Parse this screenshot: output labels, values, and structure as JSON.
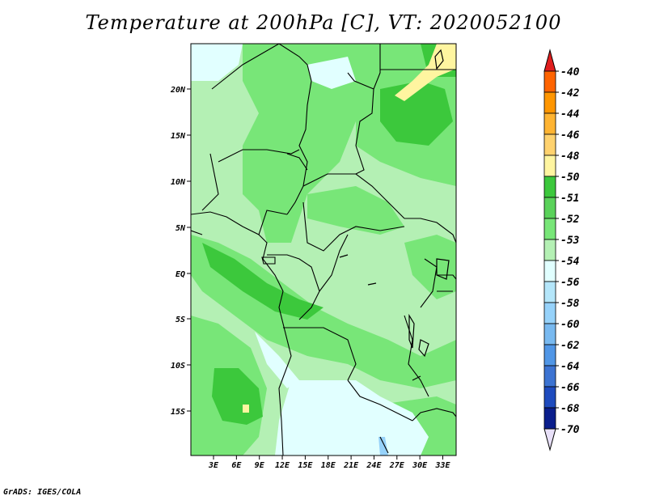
{
  "title": "Temperature at 200hPa [C], VT: 2020052100",
  "credit": "GrADS: IGES/COLA",
  "map": {
    "lat_labels": [
      "20N",
      "15N",
      "10N",
      "5N",
      "EQ",
      "5S",
      "10S",
      "15S"
    ],
    "lon_labels": [
      "3E",
      "6E",
      "9E",
      "12E",
      "15E",
      "18E",
      "21E",
      "24E",
      "27E",
      "30E",
      "33E"
    ]
  },
  "colorbar": {
    "top_arrow_color": "#e01e1e",
    "bottom_arrow_color": "#e8e0f8",
    "labels": [
      "-40",
      "-42",
      "-44",
      "-46",
      "-48",
      "-50",
      "-51",
      "-52",
      "-53",
      "-54",
      "-56",
      "-58",
      "-60",
      "-62",
      "-64",
      "-66",
      "-68",
      "-70"
    ],
    "colors": [
      "#ff3000",
      "#ff6400",
      "#ff9600",
      "#ffb432",
      "#ffd26e",
      "#fff5a0",
      "#3cc83c",
      "#5ad25a",
      "#78e678",
      "#b4f0b4",
      "#e1ffff",
      "#b4e6fa",
      "#96d2fa",
      "#78b9f0",
      "#5096e6",
      "#3c73d2",
      "#1e4bbe",
      "#0a1e8c",
      "#000064"
    ]
  },
  "legend_colors": {
    "land_base": "#b4f0b4",
    "band_53": "#78e678",
    "band_52": "#3cc83c",
    "band_51": "#fff5a0",
    "band_54": "#e1ffff",
    "band_56": "#96d2fa"
  }
}
